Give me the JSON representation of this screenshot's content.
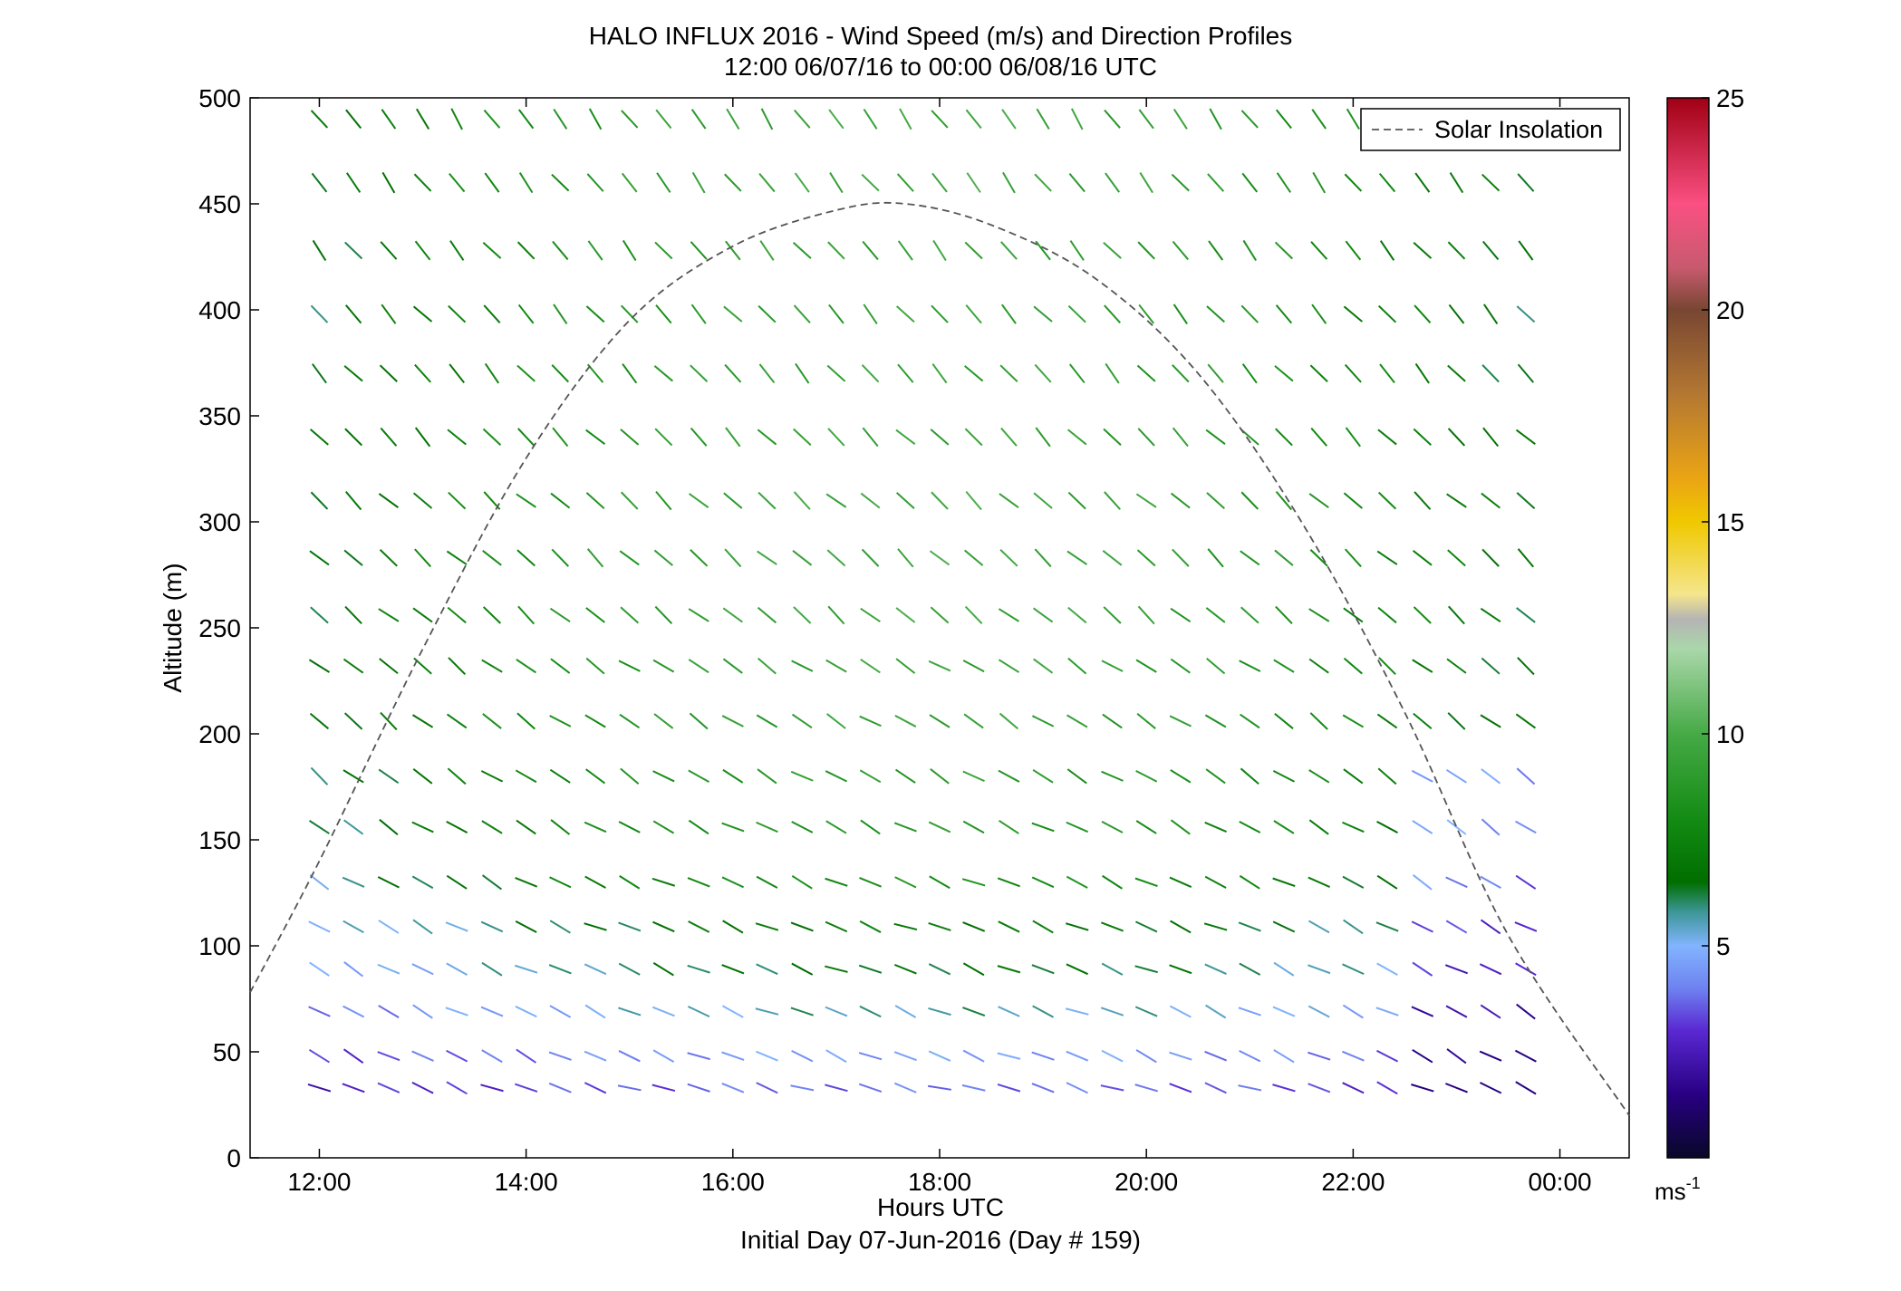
{
  "chart_data": {
    "type": "wind-barb-profile",
    "title": "HALO INFLUX 2016 - Wind Speed (m/s) and Direction Profiles",
    "subtitle": "12:00 06/07/16 to 00:00 06/08/16  UTC",
    "xlabel": "Hours UTC",
    "xlabel2": "Initial Day 07-Jun-2016 (Day # 159)",
    "ylabel": "Altitude (m)",
    "xlim_hours": [
      11.33,
      24.67
    ],
    "ylim": [
      0,
      500
    ],
    "x_ticks": [
      {
        "value": 12,
        "label": "12:00"
      },
      {
        "value": 14,
        "label": "14:00"
      },
      {
        "value": 16,
        "label": "16:00"
      },
      {
        "value": 18,
        "label": "18:00"
      },
      {
        "value": 20,
        "label": "20:00"
      },
      {
        "value": 22,
        "label": "22:00"
      },
      {
        "value": 24,
        "label": "00:00"
      }
    ],
    "y_ticks": [
      0,
      50,
      100,
      150,
      200,
      250,
      300,
      350,
      400,
      450,
      500
    ],
    "legend": {
      "position": "top-right",
      "entries": [
        {
          "name": "Solar Insolation",
          "style": "dashed",
          "color": "#555555"
        }
      ]
    },
    "colorbar": {
      "min": 0,
      "max": 25,
      "ticks": [
        5,
        10,
        15,
        20,
        25
      ],
      "unit_label": "ms",
      "unit_exponent": "-1"
    },
    "times_hours": [
      12.0,
      12.33,
      12.67,
      13.0,
      13.33,
      13.67,
      14.0,
      14.33,
      14.67,
      15.0,
      15.33,
      15.67,
      16.0,
      16.33,
      16.67,
      17.0,
      17.33,
      17.67,
      18.0,
      18.33,
      18.67,
      19.0,
      19.33,
      19.67,
      20.0,
      20.33,
      20.67,
      21.0,
      21.33,
      21.67,
      22.0,
      22.33,
      22.67,
      23.0,
      23.33,
      23.67
    ],
    "altitudes_m": [
      33,
      48,
      69,
      89,
      109,
      130,
      156,
      180,
      206,
      232,
      256,
      283,
      310,
      340,
      370,
      398,
      428,
      460,
      490
    ],
    "solar_insolation_curve": [
      [
        11.33,
        78
      ],
      [
        12.0,
        140
      ],
      [
        13.0,
        240
      ],
      [
        14.0,
        330
      ],
      [
        15.0,
        395
      ],
      [
        16.0,
        430
      ],
      [
        17.0,
        447
      ],
      [
        17.67,
        450
      ],
      [
        18.5,
        440
      ],
      [
        19.5,
        415
      ],
      [
        20.5,
        370
      ],
      [
        21.5,
        300
      ],
      [
        22.5,
        210
      ],
      [
        23.5,
        105
      ],
      [
        24.67,
        20
      ]
    ],
    "wind_profiles_note": "Each grid cell: wind barb at (time, altitude) with speed (m/s) and direction (deg, from).",
    "speed_by_altitude_m_s": [
      3.5,
      4.2,
      5.2,
      6.0,
      6.5,
      7.5,
      8.0,
      8.2,
      8.5,
      8.6,
      8.8,
      8.8,
      8.8,
      8.6,
      8.5,
      8.5,
      8.5,
      8.8,
      8.8
    ],
    "direction_by_altitude_deg": [
      295,
      300,
      300,
      300,
      300,
      302,
      305,
      308,
      310,
      310,
      310,
      312,
      312,
      315,
      318,
      318,
      320,
      322,
      325
    ]
  }
}
